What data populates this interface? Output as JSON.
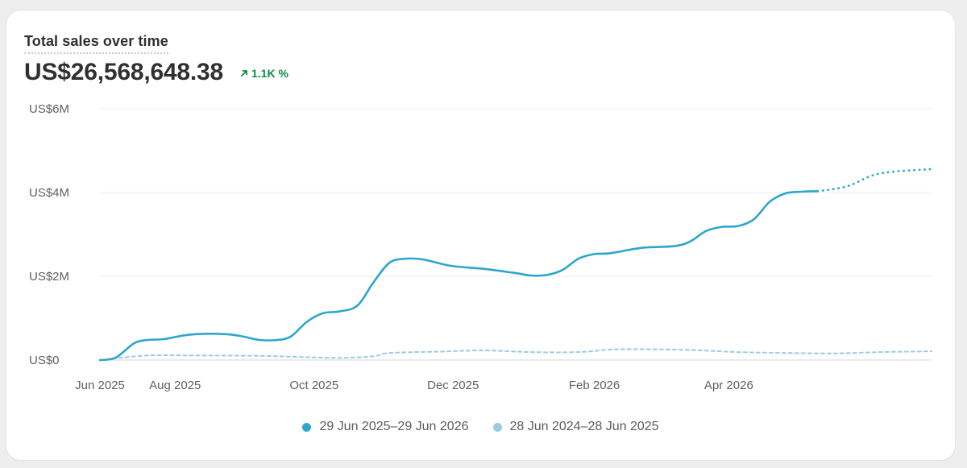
{
  "card": {
    "title": "Total sales over time",
    "total": "US$26,568,648.38",
    "change": "1.1K %",
    "change_icon": "arrow-up-right-icon"
  },
  "chart_data": {
    "type": "line",
    "title": "Total sales over time",
    "xlabel": "",
    "ylabel": "",
    "ylim": [
      0,
      6000000
    ],
    "y_ticks": [
      {
        "value": 0,
        "label": "US$0"
      },
      {
        "value": 2000000,
        "label": "US$2M"
      },
      {
        "value": 4000000,
        "label": "US$4M"
      },
      {
        "value": 6000000,
        "label": "US$6M"
      }
    ],
    "x_ticks": [
      {
        "value": "2025-06-29",
        "label": "Jun 2025"
      },
      {
        "value": "2025-08-01",
        "label": "Aug 2025"
      },
      {
        "value": "2025-10-01",
        "label": "Oct 2025"
      },
      {
        "value": "2025-12-01",
        "label": "Dec 2025"
      },
      {
        "value": "2026-02-01",
        "label": "Feb 2026"
      },
      {
        "value": "2026-04-01",
        "label": "Apr 2026"
      }
    ],
    "xlim": [
      "2025-06-29",
      "2026-06-29"
    ],
    "grid": true,
    "legend_position": "bottom",
    "series": [
      {
        "name": "29 Jun 2025–29 Jun 2026",
        "color": "#2ea7cc",
        "style": "solid",
        "projected_from": "2026-05-23",
        "points": [
          [
            "2025-06-29",
            0
          ],
          [
            "2025-07-06",
            60000
          ],
          [
            "2025-07-14",
            400000
          ],
          [
            "2025-07-20",
            480000
          ],
          [
            "2025-07-27",
            500000
          ],
          [
            "2025-08-08",
            610000
          ],
          [
            "2025-08-23",
            620000
          ],
          [
            "2025-08-31",
            560000
          ],
          [
            "2025-09-07",
            480000
          ],
          [
            "2025-09-15",
            480000
          ],
          [
            "2025-09-21",
            570000
          ],
          [
            "2025-09-28",
            920000
          ],
          [
            "2025-10-05",
            1120000
          ],
          [
            "2025-10-12",
            1160000
          ],
          [
            "2025-10-20",
            1300000
          ],
          [
            "2025-10-27",
            1850000
          ],
          [
            "2025-11-03",
            2320000
          ],
          [
            "2025-11-10",
            2420000
          ],
          [
            "2025-11-18",
            2400000
          ],
          [
            "2025-11-30",
            2250000
          ],
          [
            "2025-12-14",
            2180000
          ],
          [
            "2025-12-28",
            2080000
          ],
          [
            "2026-01-04",
            2020000
          ],
          [
            "2026-01-11",
            2030000
          ],
          [
            "2026-01-18",
            2150000
          ],
          [
            "2026-01-25",
            2420000
          ],
          [
            "2026-02-01",
            2530000
          ],
          [
            "2026-02-08",
            2550000
          ],
          [
            "2026-02-22",
            2680000
          ],
          [
            "2026-03-08",
            2720000
          ],
          [
            "2026-03-15",
            2830000
          ],
          [
            "2026-03-22",
            3080000
          ],
          [
            "2026-03-29",
            3180000
          ],
          [
            "2026-04-05",
            3200000
          ],
          [
            "2026-04-12",
            3360000
          ],
          [
            "2026-04-19",
            3780000
          ],
          [
            "2026-04-26",
            3980000
          ],
          [
            "2026-05-03",
            4020000
          ],
          [
            "2026-05-10",
            4030000
          ],
          [
            "2026-05-23",
            4150000
          ],
          [
            "2026-06-06",
            4450000
          ],
          [
            "2026-06-29",
            4560000
          ]
        ]
      },
      {
        "name": "28 Jun 2024–28 Jun 2025",
        "color": "#9ccbe0",
        "style": "dashed",
        "points": [
          [
            "2025-06-29",
            0
          ],
          [
            "2025-07-06",
            40000
          ],
          [
            "2025-07-20",
            110000
          ],
          [
            "2025-08-10",
            110000
          ],
          [
            "2025-09-07",
            100000
          ],
          [
            "2025-09-28",
            70000
          ],
          [
            "2025-10-12",
            50000
          ],
          [
            "2025-10-27",
            90000
          ],
          [
            "2025-11-03",
            170000
          ],
          [
            "2025-11-24",
            200000
          ],
          [
            "2025-12-14",
            230000
          ],
          [
            "2026-01-04",
            190000
          ],
          [
            "2026-01-25",
            190000
          ],
          [
            "2026-02-08",
            250000
          ],
          [
            "2026-02-22",
            260000
          ],
          [
            "2026-03-15",
            240000
          ],
          [
            "2026-04-05",
            190000
          ],
          [
            "2026-04-26",
            170000
          ],
          [
            "2026-05-17",
            160000
          ],
          [
            "2026-06-06",
            190000
          ],
          [
            "2026-06-29",
            210000
          ]
        ]
      }
    ]
  },
  "legend": [
    {
      "label": "29 Jun 2025–29 Jun 2026",
      "color": "#2ea7cc"
    },
    {
      "label": "28 Jun 2024–28 Jun 2025",
      "color": "#9ccbe0"
    }
  ]
}
